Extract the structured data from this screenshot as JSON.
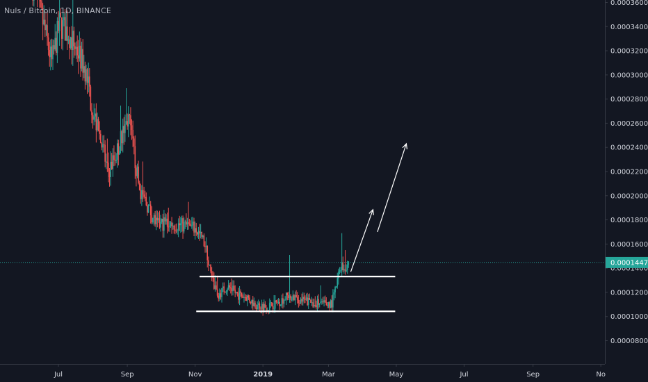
{
  "chart_title": "Nuls / Bitcoin, 1D, BINANCE",
  "colors": {
    "background": "#131722",
    "up": "#26a69a",
    "down": "#ef5350",
    "axis_text": "#d1d4dc",
    "axis_line": "#363a45",
    "price_line": "#26a69a",
    "drawing": "#ffffff"
  },
  "chart_data": {
    "type": "candlestick",
    "title": "Nuls / Bitcoin, 1D, BINANCE",
    "y_axis": {
      "position": "right",
      "range": [
        6e-05,
        0.00036
      ],
      "ticks": [
        "0.00008000",
        "0.00010000",
        "0.00012000",
        "0.00014000",
        "0.00016000",
        "0.00018000",
        "0.00020000",
        "0.00022000",
        "0.00024000",
        "0.00026000",
        "0.00028000",
        "0.00030000",
        "0.00032000",
        "0.00034000",
        "0.00036000"
      ]
    },
    "x_axis": {
      "ticks": [
        {
          "label": "Jul",
          "date": "2018-07-01"
        },
        {
          "label": "Sep",
          "date": "2018-09-01"
        },
        {
          "label": "Nov",
          "date": "2018-11-01"
        },
        {
          "label": "2019",
          "date": "2019-01-01",
          "bold": true
        },
        {
          "label": "Mar",
          "date": "2019-03-01"
        },
        {
          "label": "May",
          "date": "2019-05-01"
        },
        {
          "label": "Jul",
          "date": "2019-07-01"
        },
        {
          "label": "Sep",
          "date": "2019-09-01"
        },
        {
          "label": "No",
          "date": "2019-11-01"
        }
      ],
      "range": [
        "2018-06-08",
        "2019-11-02"
      ]
    },
    "last_price": {
      "value": 0.00014472,
      "label": "0.00014472"
    },
    "price_path": [
      {
        "date": "2018-06-08",
        "close": 0.000375
      },
      {
        "date": "2018-06-18",
        "close": 0.00034
      },
      {
        "date": "2018-06-25",
        "close": 0.00031
      },
      {
        "date": "2018-07-02",
        "close": 0.000342
      },
      {
        "date": "2018-07-10",
        "close": 0.000335
      },
      {
        "date": "2018-07-18",
        "close": 0.00032
      },
      {
        "date": "2018-07-25",
        "close": 0.000305
      },
      {
        "date": "2018-08-01",
        "close": 0.00027
      },
      {
        "date": "2018-08-08",
        "close": 0.000245
      },
      {
        "date": "2018-08-15",
        "close": 0.00022
      },
      {
        "date": "2018-08-22",
        "close": 0.000235
      },
      {
        "date": "2018-08-29",
        "close": 0.000255
      },
      {
        "date": "2018-09-02",
        "close": 0.000265
      },
      {
        "date": "2018-09-07",
        "close": 0.000235
      },
      {
        "date": "2018-09-12",
        "close": 0.000205
      },
      {
        "date": "2018-09-20",
        "close": 0.00019
      },
      {
        "date": "2018-09-28",
        "close": 0.000175
      },
      {
        "date": "2018-10-05",
        "close": 0.000178
      },
      {
        "date": "2018-10-15",
        "close": 0.000176
      },
      {
        "date": "2018-10-25",
        "close": 0.000175
      },
      {
        "date": "2018-11-02",
        "close": 0.000172
      },
      {
        "date": "2018-11-10",
        "close": 0.00016
      },
      {
        "date": "2018-11-16",
        "close": 0.00013
      },
      {
        "date": "2018-11-22",
        "close": 0.000118
      },
      {
        "date": "2018-11-30",
        "close": 0.000125
      },
      {
        "date": "2018-12-10",
        "close": 0.000118
      },
      {
        "date": "2018-12-18",
        "close": 0.000116
      },
      {
        "date": "2018-12-25",
        "close": 0.00011
      },
      {
        "date": "2019-01-05",
        "close": 0.000108
      },
      {
        "date": "2019-01-15",
        "close": 0.000112
      },
      {
        "date": "2019-01-25",
        "close": 0.000118
      },
      {
        "date": "2019-02-05",
        "close": 0.000113
      },
      {
        "date": "2019-02-15",
        "close": 0.000112
      },
      {
        "date": "2019-02-25",
        "close": 0.00011
      },
      {
        "date": "2019-03-04",
        "close": 0.000111
      },
      {
        "date": "2019-03-08",
        "close": 0.000125
      },
      {
        "date": "2019-03-12",
        "close": 0.000143
      },
      {
        "date": "2019-03-15",
        "close": 0.00014
      },
      {
        "date": "2019-03-19",
        "close": 0.000145
      }
    ],
    "drawings": [
      {
        "type": "horizontal-segment",
        "from": "2018-11-05",
        "to": "2019-04-30",
        "price": 0.0001331
      },
      {
        "type": "horizontal-segment",
        "from": "2018-11-02",
        "to": "2019-04-30",
        "price": 0.0001043
      },
      {
        "type": "arrow",
        "from_date": "2019-03-21",
        "from_price": 0.000137,
        "to_date": "2019-04-10",
        "to_price": 0.0001885
      },
      {
        "type": "arrow",
        "from_date": "2019-04-14",
        "from_price": 0.00017,
        "to_date": "2019-05-10",
        "to_price": 0.000243
      }
    ],
    "grid": false,
    "legend": "none"
  }
}
